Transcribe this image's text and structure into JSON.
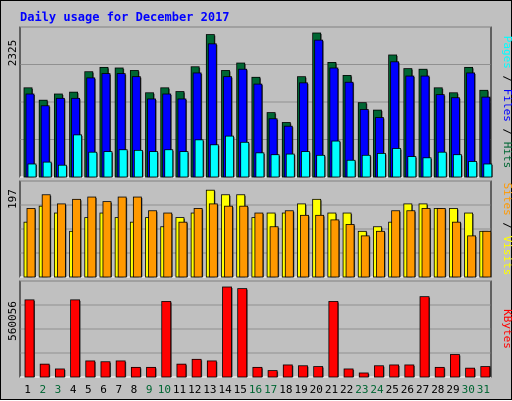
{
  "chart_data": {
    "type": "bar",
    "title": "Daily usage for December 2017",
    "categories": [
      "1",
      "2",
      "3",
      "4",
      "5",
      "6",
      "7",
      "8",
      "9",
      "10",
      "11",
      "12",
      "13",
      "14",
      "15",
      "16",
      "17",
      "18",
      "19",
      "20",
      "21",
      "22",
      "23",
      "24",
      "25",
      "26",
      "27",
      "28",
      "29",
      "30",
      "31"
    ],
    "weekend_days": [
      "2",
      "3",
      "9",
      "10",
      "16",
      "17",
      "23",
      "24",
      "30",
      "31"
    ],
    "colors": {
      "title": "#0000ff",
      "hits": "#006633",
      "files": "#0000ff",
      "pages": "#00ffff",
      "visits": "#ffff00",
      "sites": "#ff9900",
      "kbytes": "#ff0000",
      "weekend_label": "#006633",
      "weekday_label": "#000000"
    },
    "panels": [
      {
        "id": "hits-files-pages",
        "max_label": "2325",
        "ylim": [
          0,
          2325
        ],
        "legend": [
          {
            "text": "Pages",
            "color": "#00ffff"
          },
          {
            "text": " / ",
            "color": "#000000"
          },
          {
            "text": "Files",
            "color": "#0000ff"
          },
          {
            "text": " / ",
            "color": "#000000"
          },
          {
            "text": "Hits",
            "color": "#006633"
          }
        ],
        "series": [
          {
            "name": "Hits",
            "color": "#006633",
            "values": [
              1440,
              1240,
              1340,
              1370,
              1700,
              1770,
              1760,
              1720,
              1360,
              1440,
              1380,
              1780,
              2300,
              1720,
              1840,
              1610,
              1040,
              880,
              1620,
              2325,
              1850,
              1640,
              1200,
              1080,
              1970,
              1750,
              1740,
              1440,
              1360,
              1770,
              1400
            ]
          },
          {
            "name": "Files",
            "color": "#0000ff",
            "values": [
              1340,
              1150,
              1270,
              1270,
              1600,
              1670,
              1670,
              1620,
              1260,
              1340,
              1260,
              1680,
              2150,
              1620,
              1740,
              1500,
              940,
              820,
              1520,
              2210,
              1760,
              1530,
              1090,
              960,
              1860,
              1630,
              1630,
              1330,
              1280,
              1680,
              1290
            ]
          },
          {
            "name": "Pages",
            "color": "#00ffff",
            "values": [
              210,
              240,
              190,
              680,
              400,
              410,
              440,
              430,
              410,
              440,
              410,
              600,
              520,
              660,
              560,
              390,
              360,
              370,
              410,
              350,
              580,
              270,
              350,
              380,
              460,
              330,
              310,
              400,
              360,
              250,
              210
            ]
          }
        ]
      },
      {
        "id": "visits-sites",
        "max_label": "197",
        "ylim": [
          0,
          197
        ],
        "legend": [
          {
            "text": "Sites",
            "color": "#ff9900"
          },
          {
            "text": " / ",
            "color": "#000000"
          },
          {
            "text": "Visits",
            "color": "#ffff00"
          }
        ],
        "series": [
          {
            "name": "Visits",
            "color": "#ffff00",
            "values": [
              120,
              155,
              140,
              100,
              130,
              140,
              130,
              120,
              130,
              110,
              130,
              140,
              190,
              180,
              180,
              130,
              140,
              140,
              160,
              170,
              140,
              140,
              100,
              110,
              120,
              160,
              160,
              150,
              150,
              140,
              100
            ]
          },
          {
            "name": "Sites",
            "color": "#ff9900",
            "values": [
              150,
              180,
              160,
              170,
              175,
              165,
              175,
              175,
              145,
              140,
              120,
              150,
              160,
              155,
              155,
              140,
              110,
              145,
              135,
              135,
              125,
              115,
              90,
              100,
              145,
              145,
              150,
              150,
              120,
              90,
              100
            ]
          }
        ]
      },
      {
        "id": "kbytes",
        "max_label": "560056",
        "ylim": [
          0,
          560056
        ],
        "legend": [
          {
            "text": "KBytes",
            "color": "#ff0000"
          }
        ],
        "series": [
          {
            "name": "KBytes",
            "color": "#ff0000",
            "values": [
              480000,
              80000,
              50000,
              480000,
              100000,
              95000,
              100000,
              60000,
              60000,
              470000,
              80000,
              110000,
              100000,
              560056,
              550000,
              60000,
              40000,
              75000,
              70000,
              65000,
              470000,
              50000,
              25000,
              70000,
              75000,
              75000,
              500000,
              60000,
              140000,
              55000,
              65000
            ]
          }
        ]
      }
    ]
  }
}
